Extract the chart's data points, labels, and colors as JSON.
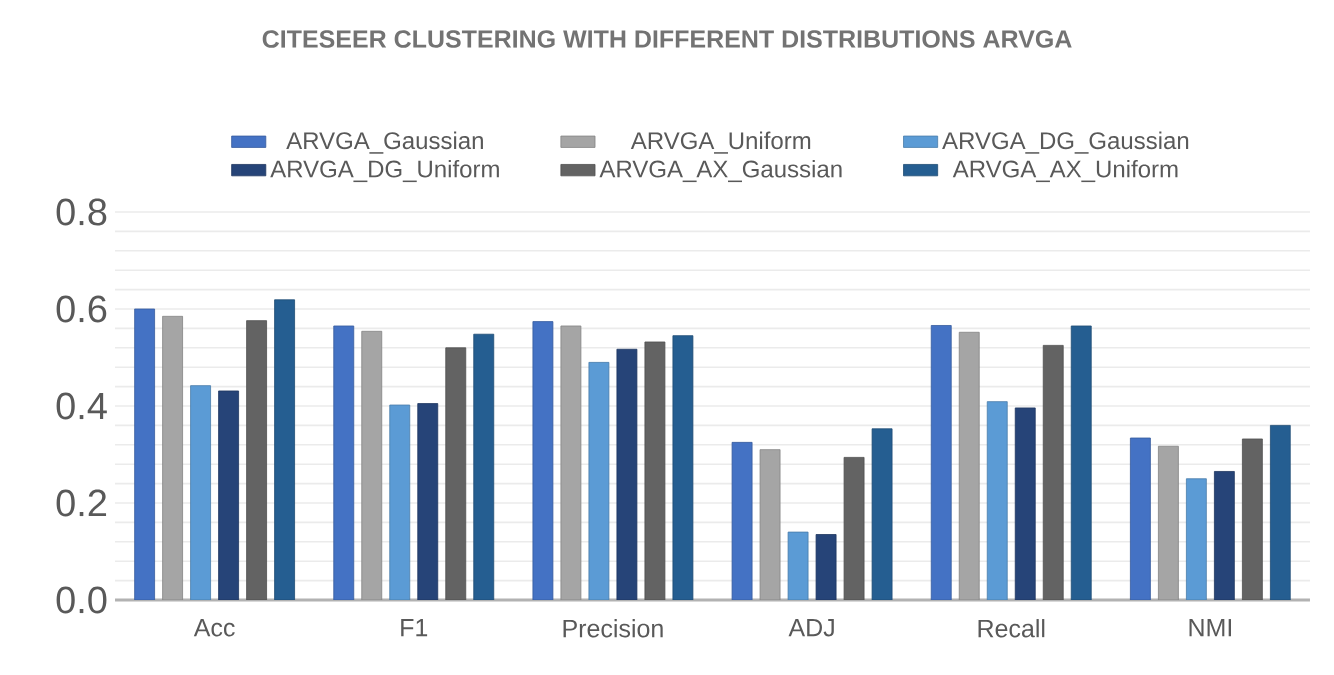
{
  "chart_data": {
    "type": "bar",
    "title": "CITESEER CLUSTERING WITH DIFFERENT DISTRIBUTIONS ARVGA",
    "categories": [
      "Acc",
      "F1",
      "Precision",
      "ADJ",
      "Recall",
      "NMI"
    ],
    "series": [
      {
        "name": "ARVGA_Gaussian",
        "color": "#4472c4",
        "values": [
          0.6,
          0.565,
          0.574,
          0.325,
          0.566,
          0.334
        ]
      },
      {
        "name": "ARVGA_Uniform",
        "color": "#a5a5a5",
        "values": [
          0.585,
          0.554,
          0.565,
          0.31,
          0.552,
          0.317
        ]
      },
      {
        "name": "ARVGA_DG_Gaussian",
        "color": "#5b9bd5",
        "values": [
          0.442,
          0.402,
          0.49,
          0.14,
          0.409,
          0.25
        ]
      },
      {
        "name": "ARVGA_DG_Uniform",
        "color": "#264478",
        "values": [
          0.431,
          0.405,
          0.517,
          0.135,
          0.396,
          0.265
        ]
      },
      {
        "name": "ARVGA_AX_Gaussian",
        "color": "#636363",
        "values": [
          0.576,
          0.52,
          0.532,
          0.294,
          0.525,
          0.332
        ]
      },
      {
        "name": "ARVGA_AX_Uniform",
        "color": "#255e91",
        "values": [
          0.619,
          0.548,
          0.545,
          0.353,
          0.565,
          0.36
        ]
      }
    ],
    "ylim": [
      0,
      0.8
    ],
    "yticks": [
      {
        "value": 0,
        "label": "0.0"
      },
      {
        "value": 0.04,
        "label": null
      },
      {
        "value": 0.08,
        "label": null
      },
      {
        "value": 0.12,
        "label": null
      },
      {
        "value": 0.16,
        "label": null
      },
      {
        "value": 0.2,
        "label": "0.2"
      },
      {
        "value": 0.24,
        "label": null
      },
      {
        "value": 0.28,
        "label": null
      },
      {
        "value": 0.32,
        "label": null
      },
      {
        "value": 0.36,
        "label": null
      },
      {
        "value": 0.4,
        "label": "0.4"
      },
      {
        "value": 0.44,
        "label": null
      },
      {
        "value": 0.48,
        "label": null
      },
      {
        "value": 0.52,
        "label": null
      },
      {
        "value": 0.56,
        "label": null
      },
      {
        "value": 0.6,
        "label": "0.6"
      },
      {
        "value": 0.64,
        "label": null
      },
      {
        "value": 0.68,
        "label": null
      },
      {
        "value": 0.72,
        "label": null
      },
      {
        "value": 0.76,
        "label": null
      },
      {
        "value": 0.8,
        "label": "0.8"
      }
    ],
    "grid": "y",
    "legend": "top"
  }
}
